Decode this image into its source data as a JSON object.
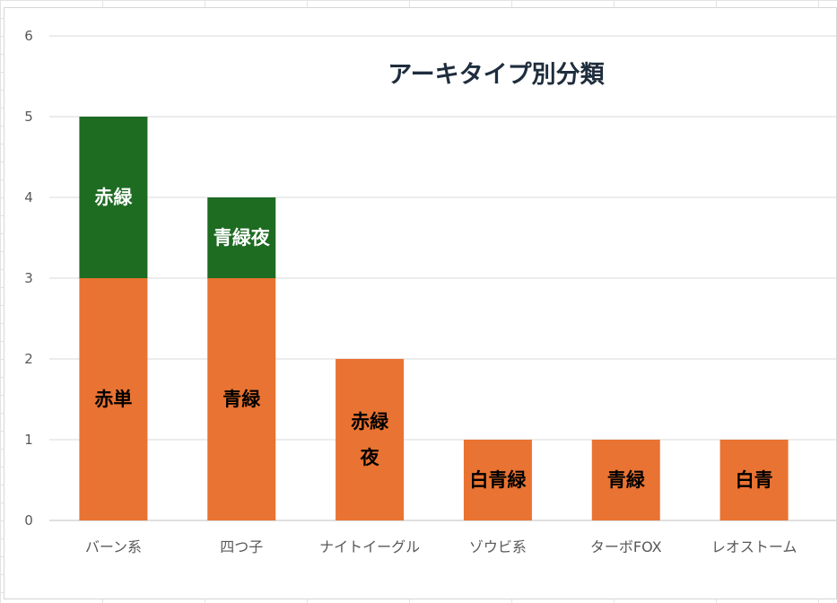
{
  "chart_data": {
    "type": "bar",
    "stacked": true,
    "title": "アーキタイプ別分類",
    "xlabel": "",
    "ylabel": "",
    "ylim": [
      0,
      6
    ],
    "yticks": [
      0,
      1,
      2,
      3,
      4,
      5,
      6
    ],
    "grid": true,
    "categories": [
      "バーン系",
      "四つ子",
      "ナイトイーグル",
      "ゾウビ系",
      "ターボFOX",
      "レオストーム"
    ],
    "stacks": [
      [
        {
          "label": "赤単",
          "value": 3,
          "color": "#e97332",
          "text_color": "#000000"
        },
        {
          "label": "赤緑",
          "value": 2,
          "color": "#1e6b22",
          "text_color": "#ffffff"
        }
      ],
      [
        {
          "label": "青緑",
          "value": 3,
          "color": "#e97332",
          "text_color": "#000000"
        },
        {
          "label": "青緑夜",
          "value": 1,
          "color": "#1e6b22",
          "text_color": "#ffffff"
        }
      ],
      [
        {
          "label": "赤緑\n夜",
          "value": 2,
          "color": "#e97332",
          "text_color": "#000000"
        }
      ],
      [
        {
          "label": "白青緑",
          "value": 1,
          "color": "#e97332",
          "text_color": "#000000"
        }
      ],
      [
        {
          "label": "青緑",
          "value": 1,
          "color": "#e97332",
          "text_color": "#000000"
        }
      ],
      [
        {
          "label": "白青",
          "value": 1,
          "color": "#e97332",
          "text_color": "#000000"
        }
      ]
    ]
  }
}
